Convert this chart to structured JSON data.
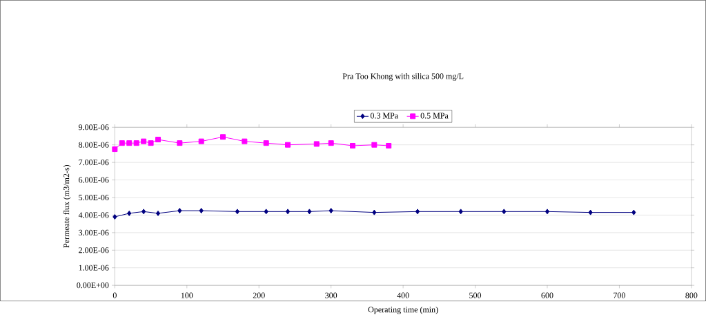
{
  "chart_data": {
    "type": "line",
    "title": "Pra Too Khong with silica 500 mg/L",
    "xlabel": "Operating time (min)",
    "ylabel": "Permeate flux (m3/m2-s)",
    "xlim": [
      0,
      800
    ],
    "xticks": [
      0,
      100,
      200,
      300,
      400,
      500,
      600,
      700,
      800
    ],
    "ylim": [
      0,
      9e-06
    ],
    "yticks": [
      {
        "value": 0,
        "label": "0.00E+00"
      },
      {
        "value": 1e-06,
        "label": "1.00E-06"
      },
      {
        "value": 2e-06,
        "label": "2.00E-06"
      },
      {
        "value": 3e-06,
        "label": "3.00E-06"
      },
      {
        "value": 4e-06,
        "label": "4.00E-06"
      },
      {
        "value": 5e-06,
        "label": "5.00E-06"
      },
      {
        "value": 6e-06,
        "label": "6.00E-06"
      },
      {
        "value": 7e-06,
        "label": "7.00E-06"
      },
      {
        "value": 8e-06,
        "label": "8.00E-06"
      },
      {
        "value": 9e-06,
        "label": "9.00E-06"
      }
    ],
    "grid": "y",
    "legend": "top",
    "series": [
      {
        "name": "0.3 MPa",
        "color": "#000080",
        "marker": "diamond",
        "x": [
          0,
          20,
          40,
          60,
          90,
          120,
          170,
          210,
          240,
          270,
          300,
          360,
          420,
          480,
          540,
          600,
          660,
          720
        ],
        "values": [
          3.9e-06,
          4.1e-06,
          4.2e-06,
          4.1e-06,
          4.25e-06,
          4.25e-06,
          4.2e-06,
          4.2e-06,
          4.2e-06,
          4.2e-06,
          4.25e-06,
          4.15e-06,
          4.2e-06,
          4.2e-06,
          4.2e-06,
          4.2e-06,
          4.15e-06,
          4.15e-06
        ]
      },
      {
        "name": "0.5 MPa",
        "color": "#ff00ff",
        "marker": "square",
        "x": [
          0,
          10,
          20,
          30,
          40,
          50,
          60,
          90,
          120,
          150,
          180,
          210,
          240,
          280,
          300,
          330,
          360,
          380
        ],
        "values": [
          7.75e-06,
          8.1e-06,
          8.1e-06,
          8.1e-06,
          8.2e-06,
          8.1e-06,
          8.3e-06,
          8.1e-06,
          8.2e-06,
          8.45e-06,
          8.2e-06,
          8.1e-06,
          8e-06,
          8.05e-06,
          8.1e-06,
          7.95e-06,
          8e-06,
          7.95e-06
        ]
      }
    ]
  }
}
